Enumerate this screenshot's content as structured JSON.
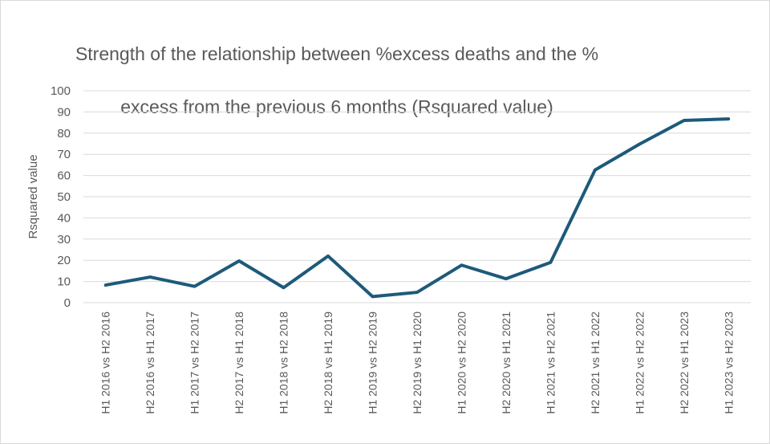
{
  "chart_data": {
    "type": "line",
    "title_line1": "Strength of the relationship between %excess deaths and the %",
    "title_line2": "excess from the previous 6 months (Rsquared value)",
    "ylabel": "Rsquared value",
    "xlabel": "",
    "ylim": [
      0,
      100
    ],
    "yticks": [
      0,
      10,
      20,
      30,
      40,
      50,
      60,
      70,
      80,
      90,
      100
    ],
    "grid": true,
    "legend": "none",
    "categories": [
      "H1 2016 vs H2 2016",
      "H2 2016 vs H1 2017",
      "H1 2017 vs H2 2017",
      "H2 2017 vs H1 2018",
      "H1 2018 vs H2 2018",
      "H2 2018 vs H1 2019",
      "H1 2019 vs H2 2019",
      "H2 2019 vs H1 2020",
      "H1 2020 vs H2 2020",
      "H2 2020 vs H1 2021",
      "H1 2021 vs H2 2021",
      "H2 2021 vs H1 2022",
      "H1 2022 vs H2 2022",
      "H2 2022 vs H1 2023",
      "H1 2023 vs H2 2023"
    ],
    "series": [
      {
        "values": [
          8.3,
          12.1,
          7.7,
          19.7,
          7.1,
          22.0,
          2.9,
          4.9,
          17.7,
          11.3,
          19.0,
          62.6,
          74.8,
          86.0,
          86.7
        ],
        "color": "#1d5a7a"
      }
    ]
  }
}
